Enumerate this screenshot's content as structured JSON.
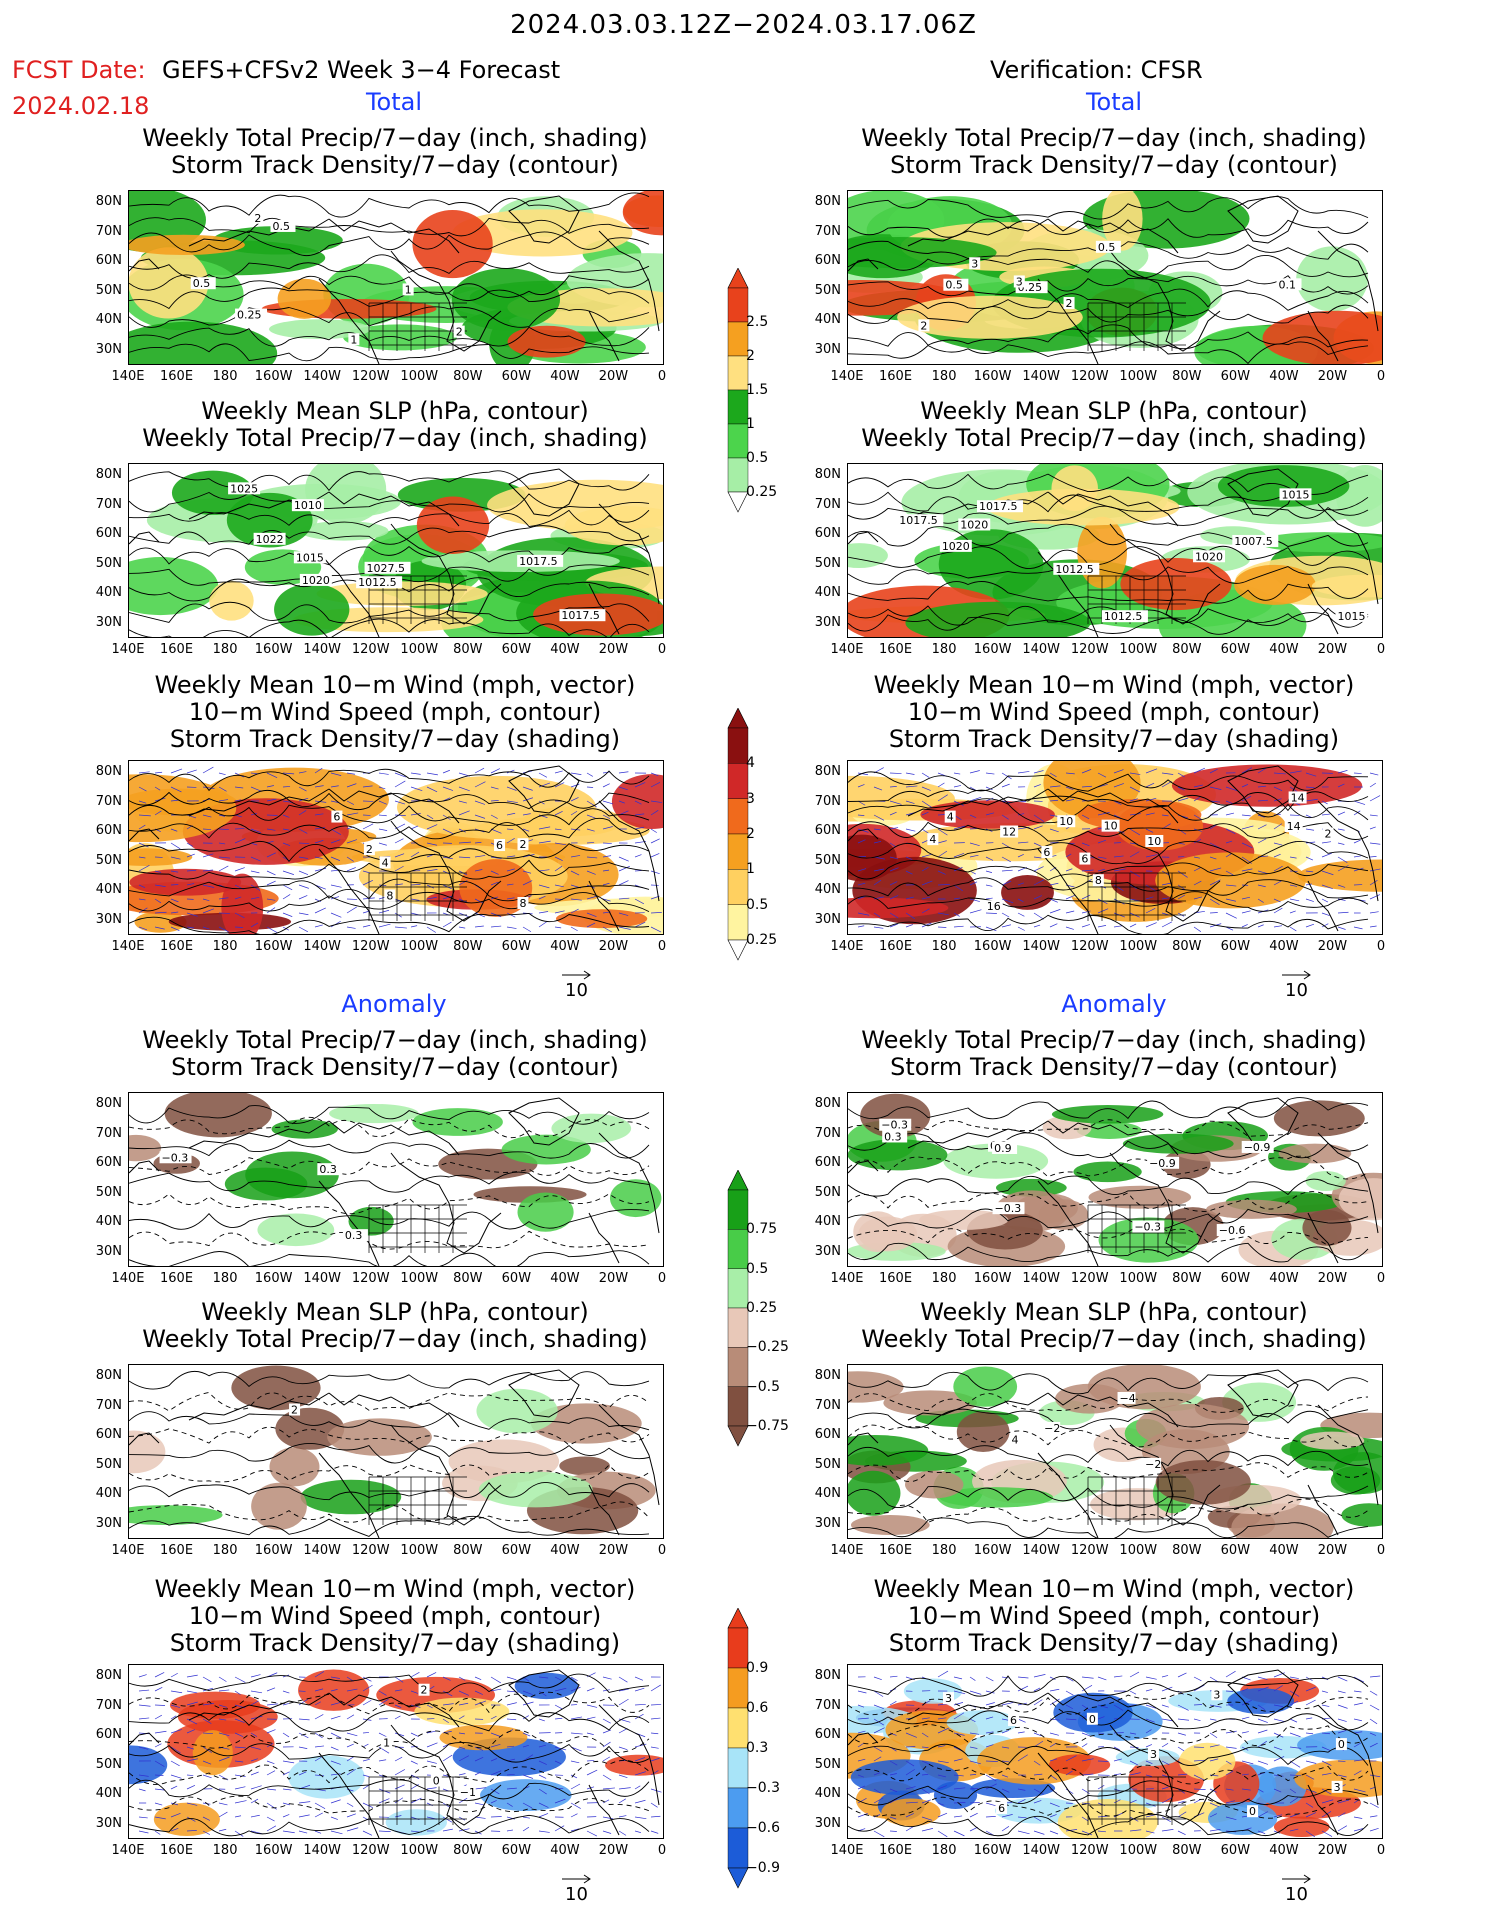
{
  "header": {
    "date_range": "2024.03.03.12Z−2024.03.17.06Z",
    "fcst_prefix": "FCST Date:",
    "fcst_date": "2024.02.18",
    "fcst_label": "GEFS+CFSv2 Week 3−4 Forecast",
    "verification": "Verification: CFSR"
  },
  "sections": {
    "total": "Total",
    "anomaly": "Anomaly"
  },
  "titles": {
    "precip_storm": [
      "Weekly Total Precip/7−day (inch, shading)",
      "Storm Track Density/7−day (contour)"
    ],
    "slp_precip": [
      "Weekly Mean SLP (hPa, contour)",
      "Weekly Total Precip/7−day (inch, shading)"
    ],
    "wind": [
      "Weekly Mean 10−m Wind (mph, vector)",
      "10−m Wind Speed (mph, contour)",
      "Storm Track Density/7−day (shading)"
    ]
  },
  "axes": {
    "lat_labels": [
      "80N",
      "70N",
      "60N",
      "50N",
      "40N",
      "30N"
    ],
    "lon_labels": [
      "140E",
      "160E",
      "180",
      "160W",
      "140W",
      "120W",
      "100W",
      "80W",
      "60W",
      "40W",
      "20W",
      "0"
    ]
  },
  "colorbars": {
    "precip_total": {
      "labels": [
        "2.5",
        "2",
        "1.5",
        "1",
        "0.5",
        "0.25"
      ],
      "colors": [
        "#e8421c",
        "#f5a020",
        "#ffe080",
        "#1ca81c",
        "#4cd44c",
        "#a6eea6"
      ]
    },
    "storm_total": {
      "labels": [
        "4",
        "3",
        "2",
        "1",
        "0.5",
        "0.25"
      ],
      "colors": [
        "#8a1010",
        "#d02828",
        "#f06a1c",
        "#f5a020",
        "#ffd060",
        "#fff4a0"
      ]
    },
    "precip_anom": {
      "labels": [
        "0.75",
        "0.5",
        "0.25",
        "−0.25",
        "−0.5",
        "−0.75"
      ],
      "colors": [
        "#18a018",
        "#48cc48",
        "#a8eea8",
        "#e8c8b8",
        "#b88c78",
        "#805040"
      ]
    },
    "storm_anom": {
      "labels": [
        "0.9",
        "0.6",
        "0.3",
        "−0.3",
        "−0.6",
        "−0.9"
      ],
      "colors": [
        "#e83c1c",
        "#f59c20",
        "#ffe070",
        "#a8e4f8",
        "#4c9cf0",
        "#1c5cd8"
      ]
    }
  },
  "vector_scale": "10",
  "contour_labels": {
    "fc_total_precip": [
      "0.25",
      "2",
      "1",
      "0.5",
      "0.5",
      "2",
      "1"
    ],
    "ob_total_precip": [
      "2",
      "0.25",
      "0.1",
      "0.5",
      "0.5",
      "3",
      "3",
      "2"
    ],
    "fc_total_slp": [
      "1027.5",
      "1022",
      "1025",
      "1017.5",
      "1017.5",
      "1010",
      "1012.5",
      "1015",
      "1020"
    ],
    "ob_total_slp": [
      "1020",
      "1015",
      "1012.5",
      "1020",
      "1007.5",
      "1012.5",
      "1017.5",
      "1015",
      "1017.5",
      "1020"
    ],
    "fc_total_wind": [
      "6",
      "8",
      "2",
      "4",
      "8",
      "6",
      "2"
    ],
    "ob_total_wind": [
      "2",
      "6",
      "4",
      "14",
      "10",
      "8",
      "16",
      "14",
      "4",
      "6",
      "12",
      "10",
      "10"
    ],
    "fc_anom_precip": [
      "−0.3",
      "0.3",
      "0.3"
    ],
    "ob_anom_precip": [
      "0.3",
      "−0.3",
      "−0.6",
      "−0.9",
      "0.3",
      "−0.3",
      "−0.3",
      "−0.9",
      "0.9"
    ],
    "fc_anom_slp": [
      "2"
    ],
    "ob_anom_slp": [
      "−4",
      "−2",
      "−2",
      "4"
    ],
    "fc_anom_wind": [
      "2",
      "1",
      "−1",
      "0"
    ],
    "ob_anom_wind": [
      "0",
      "3",
      "3",
      "0",
      "6",
      "3",
      "6",
      "3",
      "0"
    ]
  }
}
